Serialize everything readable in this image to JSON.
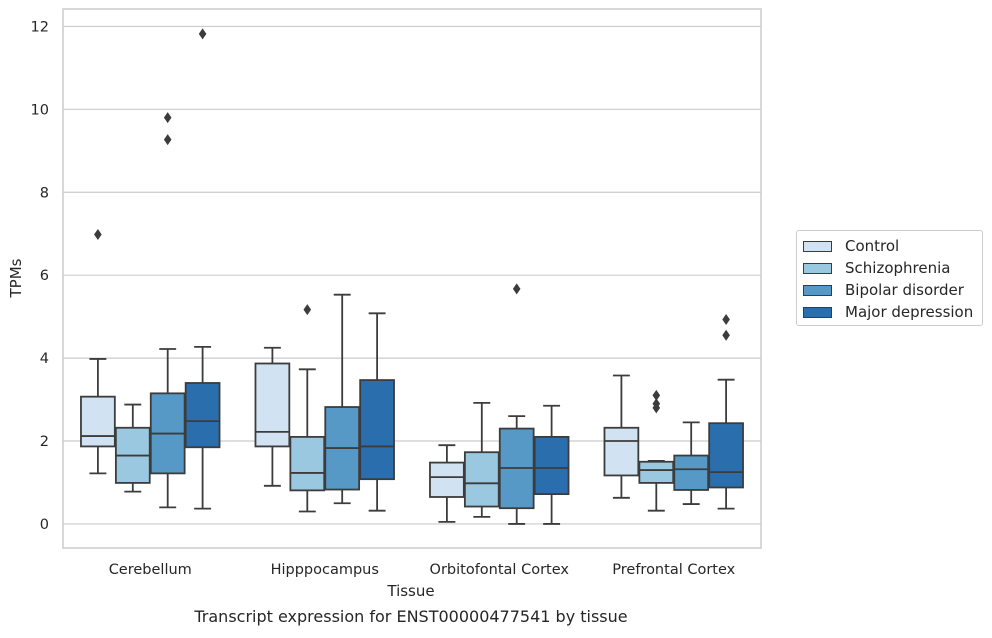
{
  "chart_data": {
    "type": "boxplot",
    "title": "Transcript expression for ENST00000477541 by tissue",
    "xlabel": "Tissue",
    "ylabel": "TPMs",
    "ylim": [
      -0.58,
      12.42
    ],
    "yticks": [
      0,
      2,
      4,
      6,
      8,
      10,
      12
    ],
    "grid": true,
    "legend_position": "right",
    "categories": [
      "Cerebellum",
      "Hipppocampus",
      "Orbitofontal Cortex",
      "Prefrontal Cortex"
    ],
    "series": [
      {
        "name": "Control",
        "color": "#d1e2f2",
        "boxes": [
          {
            "whislo": 1.22,
            "q1": 1.87,
            "med": 2.12,
            "q3": 3.07,
            "whishi": 3.98,
            "fliers": [
              6.98
            ]
          },
          {
            "whislo": 0.92,
            "q1": 1.87,
            "med": 2.22,
            "q3": 3.87,
            "whishi": 4.25,
            "fliers": []
          },
          {
            "whislo": 0.05,
            "q1": 0.65,
            "med": 1.13,
            "q3": 1.48,
            "whishi": 1.9,
            "fliers": []
          },
          {
            "whislo": 0.63,
            "q1": 1.17,
            "med": 2.0,
            "q3": 2.32,
            "whishi": 3.58,
            "fliers": []
          }
        ]
      },
      {
        "name": "Schizophrenia",
        "color": "#9ac8e1",
        "boxes": [
          {
            "whislo": 0.78,
            "q1": 0.99,
            "med": 1.65,
            "q3": 2.32,
            "whishi": 2.88,
            "fliers": []
          },
          {
            "whislo": 0.3,
            "q1": 0.81,
            "med": 1.23,
            "q3": 2.1,
            "whishi": 3.73,
            "fliers": [
              5.17
            ]
          },
          {
            "whislo": 0.17,
            "q1": 0.42,
            "med": 0.98,
            "q3": 1.73,
            "whishi": 2.92,
            "fliers": []
          },
          {
            "whislo": 0.32,
            "q1": 0.99,
            "med": 1.3,
            "q3": 1.5,
            "whishi": 1.52,
            "fliers": [
              2.8,
              2.9,
              3.1
            ]
          }
        ]
      },
      {
        "name": "Bipolar disorder",
        "color": "#5799c6",
        "boxes": [
          {
            "whislo": 0.4,
            "q1": 1.22,
            "med": 2.18,
            "q3": 3.15,
            "whishi": 4.22,
            "fliers": [
              9.27,
              9.8
            ]
          },
          {
            "whislo": 0.5,
            "q1": 0.83,
            "med": 1.83,
            "q3": 2.82,
            "whishi": 5.53,
            "fliers": []
          },
          {
            "whislo": 0.0,
            "q1": 0.38,
            "med": 1.35,
            "q3": 2.3,
            "whishi": 2.6,
            "fliers": [
              5.67
            ]
          },
          {
            "whislo": 0.48,
            "q1": 0.82,
            "med": 1.32,
            "q3": 1.65,
            "whishi": 2.45,
            "fliers": []
          }
        ]
      },
      {
        "name": "Major depression",
        "color": "#2a6ead",
        "boxes": [
          {
            "whislo": 0.37,
            "q1": 1.85,
            "med": 2.48,
            "q3": 3.4,
            "whishi": 4.27,
            "fliers": [
              11.82
            ]
          },
          {
            "whislo": 0.32,
            "q1": 1.08,
            "med": 1.87,
            "q3": 3.47,
            "whishi": 5.08,
            "fliers": []
          },
          {
            "whislo": 0.0,
            "q1": 0.72,
            "med": 1.35,
            "q3": 2.1,
            "whishi": 2.85,
            "fliers": []
          },
          {
            "whislo": 0.37,
            "q1": 0.88,
            "med": 1.25,
            "q3": 2.43,
            "whishi": 3.48,
            "fliers": [
              4.55,
              4.93
            ]
          }
        ]
      }
    ]
  }
}
